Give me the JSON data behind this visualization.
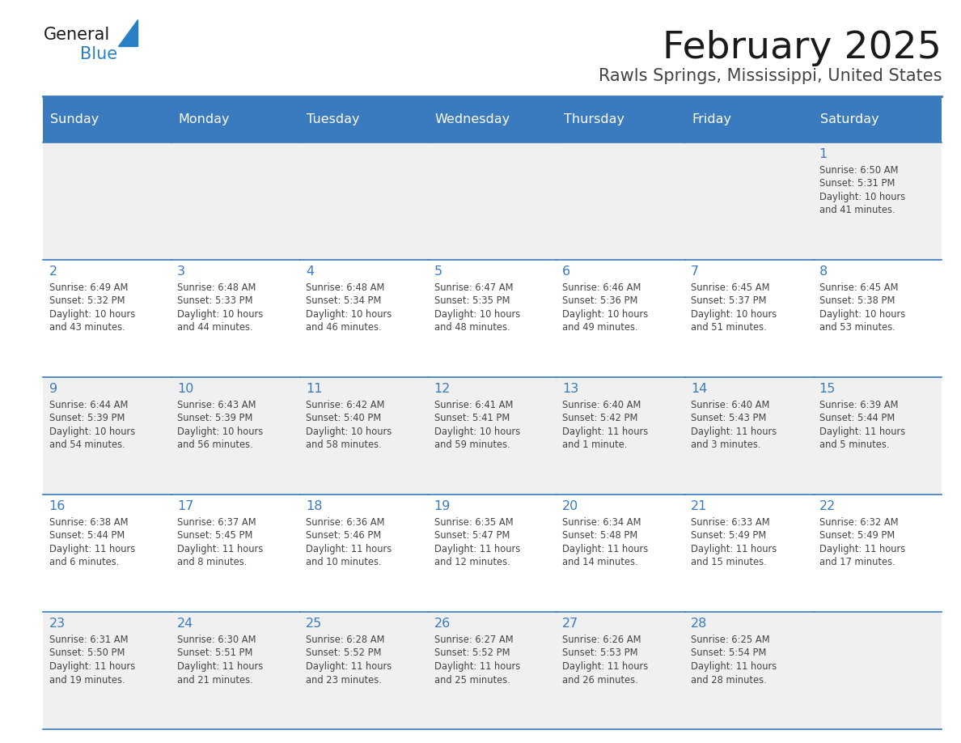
{
  "title": "February 2025",
  "subtitle": "Rawls Springs, Mississippi, United States",
  "header_bg": "#3a7abf",
  "header_text_color": "#ffffff",
  "day_names": [
    "Sunday",
    "Monday",
    "Tuesday",
    "Wednesday",
    "Thursday",
    "Friday",
    "Saturday"
  ],
  "bg_color": "#ffffff",
  "cell_alt_bg": "#f0f0f0",
  "cell_border_color": "#3a7abf",
  "day_num_color": "#3a7abf",
  "text_color": "#444444",
  "logo_general_color": "#1a1a1a",
  "logo_blue_color": "#2980c4",
  "calendar_data": [
    [
      null,
      null,
      null,
      null,
      null,
      null,
      {
        "day": 1,
        "sunrise": "6:50 AM",
        "sunset": "5:31 PM",
        "daylight": "10 hours and 41 minutes."
      }
    ],
    [
      {
        "day": 2,
        "sunrise": "6:49 AM",
        "sunset": "5:32 PM",
        "daylight": "10 hours and 43 minutes."
      },
      {
        "day": 3,
        "sunrise": "6:48 AM",
        "sunset": "5:33 PM",
        "daylight": "10 hours and 44 minutes."
      },
      {
        "day": 4,
        "sunrise": "6:48 AM",
        "sunset": "5:34 PM",
        "daylight": "10 hours and 46 minutes."
      },
      {
        "day": 5,
        "sunrise": "6:47 AM",
        "sunset": "5:35 PM",
        "daylight": "10 hours and 48 minutes."
      },
      {
        "day": 6,
        "sunrise": "6:46 AM",
        "sunset": "5:36 PM",
        "daylight": "10 hours and 49 minutes."
      },
      {
        "day": 7,
        "sunrise": "6:45 AM",
        "sunset": "5:37 PM",
        "daylight": "10 hours and 51 minutes."
      },
      {
        "day": 8,
        "sunrise": "6:45 AM",
        "sunset": "5:38 PM",
        "daylight": "10 hours and 53 minutes."
      }
    ],
    [
      {
        "day": 9,
        "sunrise": "6:44 AM",
        "sunset": "5:39 PM",
        "daylight": "10 hours and 54 minutes."
      },
      {
        "day": 10,
        "sunrise": "6:43 AM",
        "sunset": "5:39 PM",
        "daylight": "10 hours and 56 minutes."
      },
      {
        "day": 11,
        "sunrise": "6:42 AM",
        "sunset": "5:40 PM",
        "daylight": "10 hours and 58 minutes."
      },
      {
        "day": 12,
        "sunrise": "6:41 AM",
        "sunset": "5:41 PM",
        "daylight": "10 hours and 59 minutes."
      },
      {
        "day": 13,
        "sunrise": "6:40 AM",
        "sunset": "5:42 PM",
        "daylight": "11 hours and 1 minute."
      },
      {
        "day": 14,
        "sunrise": "6:40 AM",
        "sunset": "5:43 PM",
        "daylight": "11 hours and 3 minutes."
      },
      {
        "day": 15,
        "sunrise": "6:39 AM",
        "sunset": "5:44 PM",
        "daylight": "11 hours and 5 minutes."
      }
    ],
    [
      {
        "day": 16,
        "sunrise": "6:38 AM",
        "sunset": "5:44 PM",
        "daylight": "11 hours and 6 minutes."
      },
      {
        "day": 17,
        "sunrise": "6:37 AM",
        "sunset": "5:45 PM",
        "daylight": "11 hours and 8 minutes."
      },
      {
        "day": 18,
        "sunrise": "6:36 AM",
        "sunset": "5:46 PM",
        "daylight": "11 hours and 10 minutes."
      },
      {
        "day": 19,
        "sunrise": "6:35 AM",
        "sunset": "5:47 PM",
        "daylight": "11 hours and 12 minutes."
      },
      {
        "day": 20,
        "sunrise": "6:34 AM",
        "sunset": "5:48 PM",
        "daylight": "11 hours and 14 minutes."
      },
      {
        "day": 21,
        "sunrise": "6:33 AM",
        "sunset": "5:49 PM",
        "daylight": "11 hours and 15 minutes."
      },
      {
        "day": 22,
        "sunrise": "6:32 AM",
        "sunset": "5:49 PM",
        "daylight": "11 hours and 17 minutes."
      }
    ],
    [
      {
        "day": 23,
        "sunrise": "6:31 AM",
        "sunset": "5:50 PM",
        "daylight": "11 hours and 19 minutes."
      },
      {
        "day": 24,
        "sunrise": "6:30 AM",
        "sunset": "5:51 PM",
        "daylight": "11 hours and 21 minutes."
      },
      {
        "day": 25,
        "sunrise": "6:28 AM",
        "sunset": "5:52 PM",
        "daylight": "11 hours and 23 minutes."
      },
      {
        "day": 26,
        "sunrise": "6:27 AM",
        "sunset": "5:52 PM",
        "daylight": "11 hours and 25 minutes."
      },
      {
        "day": 27,
        "sunrise": "6:26 AM",
        "sunset": "5:53 PM",
        "daylight": "11 hours and 26 minutes."
      },
      {
        "day": 28,
        "sunrise": "6:25 AM",
        "sunset": "5:54 PM",
        "daylight": "11 hours and 28 minutes."
      },
      null
    ]
  ]
}
